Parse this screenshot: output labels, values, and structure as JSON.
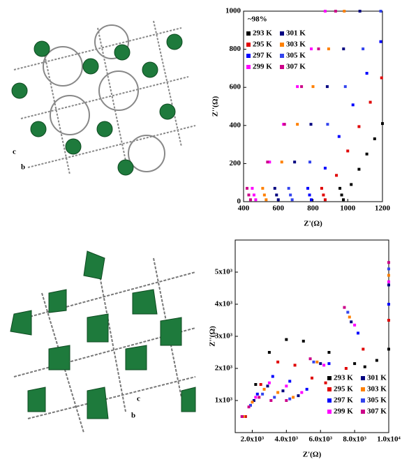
{
  "chart_data": [
    {
      "type": "scatter",
      "annotation": "~98%",
      "xlabel": "Z'(Ω)",
      "ylabel": "Z''(Ω)",
      "xlim": [
        400,
        1200
      ],
      "xticks": [
        400,
        600,
        800,
        1000,
        1200
      ],
      "ylim": [
        0,
        1000
      ],
      "yticks": [
        0,
        200,
        400,
        600,
        800,
        1000
      ],
      "legend": "upper left",
      "series": [
        {
          "name": "293 K",
          "color": "#000000",
          "x": [
            955,
            965,
            975,
            1020,
            1065,
            1110,
            1155,
            1200
          ],
          "values": [
            70,
            35,
            10,
            90,
            170,
            250,
            330,
            410
          ]
        },
        {
          "name": "295 K",
          "color": "#e00000",
          "x": [
            850,
            860,
            870,
            935,
            1000,
            1065,
            1130,
            1195
          ],
          "values": [
            70,
            35,
            10,
            138,
            266,
            394,
            522,
            650
          ]
        },
        {
          "name": "297 K",
          "color": "#0000ff",
          "x": [
            770,
            780,
            790,
            870,
            950,
            1030,
            1110,
            1190
          ],
          "values": [
            70,
            35,
            10,
            176,
            342,
            508,
            674,
            840
          ]
        },
        {
          "name": "299 K",
          "color": "#ff00ff",
          "x": [
            450,
            460,
            470,
            550,
            630,
            710,
            790,
            870
          ],
          "values": [
            70,
            35,
            10,
            208,
            406,
            604,
            802,
            1000
          ]
        },
        {
          "name": "301 K",
          "color": "#000080",
          "x": [
            580,
            590,
            600,
            694,
            788,
            882,
            976,
            1070
          ],
          "values": [
            70,
            35,
            10,
            208,
            406,
            604,
            802,
            1000
          ]
        },
        {
          "name": "303 K",
          "color": "#ff8000",
          "x": [
            510,
            520,
            530,
            620,
            710,
            800,
            890,
            980
          ],
          "values": [
            70,
            35,
            10,
            208,
            406,
            604,
            802,
            1000
          ]
        },
        {
          "name": "305 K",
          "color": "#3344ee",
          "x": [
            660,
            670,
            680,
            782,
            884,
            986,
            1088,
            1190
          ],
          "values": [
            70,
            35,
            10,
            208,
            406,
            604,
            802,
            1000
          ]
        },
        {
          "name": "307 K",
          "color": "#cc0088",
          "x": [
            420,
            430,
            440,
            538,
            636,
            734,
            832,
            930
          ],
          "values": [
            70,
            35,
            10,
            208,
            406,
            604,
            802,
            1000
          ]
        }
      ]
    },
    {
      "type": "scatter",
      "xlabel": "Z'(Ω)",
      "ylabel": "Z''(Ω)",
      "xlim": [
        1000,
        10000
      ],
      "xticks": [
        {
          "value": 2000,
          "label": "2.0x10³"
        },
        {
          "value": 4000,
          "label": "4.0x10³"
        },
        {
          "value": 6000,
          "label": "6.0x10³"
        },
        {
          "value": 8000,
          "label": "8.0x10³"
        },
        {
          "value": 10000,
          "label": "1.0x10⁴"
        }
      ],
      "ylim": [
        0,
        6000
      ],
      "yticks": [
        {
          "value": 1000,
          "label": "1x10³"
        },
        {
          "value": 2000,
          "label": "2x10³"
        },
        {
          "value": 3000,
          "label": "3x10³"
        },
        {
          "value": 4000,
          "label": "4x10³"
        },
        {
          "value": 5000,
          "label": "5x10³"
        }
      ],
      "legend": "lower right",
      "series": [
        {
          "name": "293 K",
          "color": "#000000",
          "x": [
            1600,
            2200,
            3000,
            4000,
            5000,
            6500,
            8000,
            8600,
            9300,
            10000
          ],
          "values": [
            500,
            1500,
            2500,
            2900,
            2850,
            2500,
            2150,
            2050,
            2250,
            2600
          ]
        },
        {
          "name": "295 K",
          "color": "#e00000",
          "x": [
            1600,
            2500,
            3500,
            4500,
            5500,
            6300,
            7500,
            8500,
            10000
          ],
          "values": [
            500,
            1500,
            2200,
            2100,
            1700,
            1550,
            2000,
            2600,
            3500
          ]
        },
        {
          "name": "297 K",
          "color": "#0000ff",
          "x": [
            1500,
            2300,
            3200,
            4200,
            5200,
            6500,
            8200,
            10000
          ],
          "values": [
            500,
            1200,
            1750,
            1600,
            1350,
            2150,
            3100,
            4000
          ]
        },
        {
          "name": "299 K",
          "color": "#ff00ff",
          "x": [
            1500,
            2200,
            3000,
            4000,
            4900,
            6200,
            8000,
            10000
          ],
          "values": [
            500,
            1100,
            1550,
            1450,
            1250,
            2100,
            3350,
            4700
          ]
        },
        {
          "name": "301 K",
          "color": "#000080",
          "x": [
            1500,
            2100,
            2900,
            3800,
            4700,
            6000,
            7800,
            10000
          ],
          "values": [
            500,
            1000,
            1450,
            1300,
            1150,
            2150,
            3450,
            4600
          ]
        },
        {
          "name": "303 K",
          "color": "#ff8000",
          "x": [
            1500,
            2000,
            2700,
            3500,
            4400,
            5800,
            7700,
            10000
          ],
          "values": [
            500,
            950,
            1350,
            1250,
            1100,
            2200,
            3600,
            4900
          ]
        },
        {
          "name": "305 K",
          "color": "#3344ee",
          "x": [
            1400,
            1900,
            2600,
            3300,
            4200,
            5600,
            7600,
            10000
          ],
          "values": [
            500,
            850,
            1200,
            1100,
            1050,
            2200,
            3750,
            5100
          ]
        },
        {
          "name": "307 K",
          "color": "#cc0088",
          "x": [
            1400,
            1800,
            2400,
            3100,
            4000,
            5400,
            7400,
            10000
          ],
          "values": [
            500,
            800,
            1100,
            1000,
            1000,
            2300,
            3900,
            5300
          ]
        }
      ]
    }
  ],
  "images": [
    {
      "axis_labels": [
        "c",
        "b"
      ]
    },
    {
      "axis_labels": [
        "b",
        "c"
      ]
    }
  ]
}
